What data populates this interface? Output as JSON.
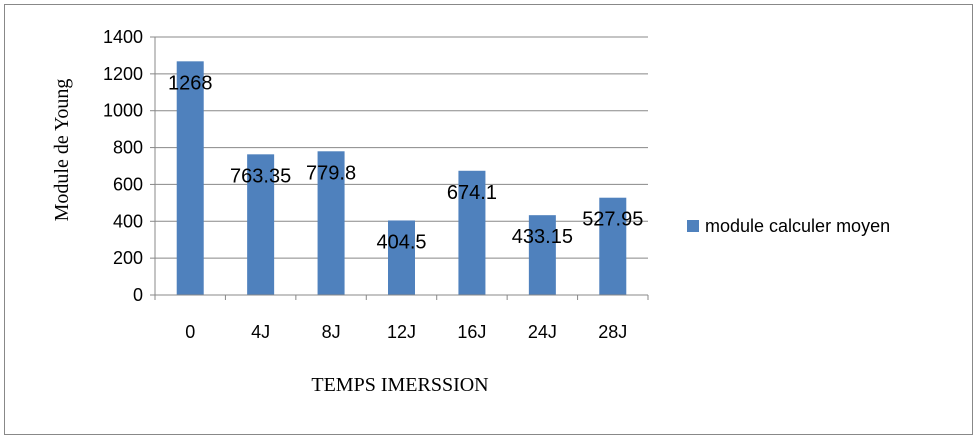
{
  "chart_data": {
    "type": "bar",
    "title": "",
    "xlabel": "TEMPS  IMERSSION",
    "ylabel": "Module de Young",
    "categories": [
      "0",
      "4J",
      "8J",
      "12J",
      "16J",
      "24J",
      "28J"
    ],
    "series": [
      {
        "name": "module calculer moyen",
        "values": [
          1268,
          763.35,
          779.8,
          404.5,
          674.1,
          433.15,
          527.95
        ],
        "labels": [
          "1268",
          "763.35",
          "779.8",
          "404.5",
          "674.1",
          "433.15",
          "527.95"
        ],
        "color": "#4f81bd"
      }
    ],
    "ylim": [
      0,
      1400
    ],
    "yticks": [
      0,
      200,
      400,
      600,
      800,
      1000,
      1200,
      1400
    ],
    "ytick_labels": [
      "0",
      "200",
      "400",
      "600",
      "800",
      "1000",
      "1200",
      "1400"
    ],
    "grid": true,
    "legend": "right"
  }
}
